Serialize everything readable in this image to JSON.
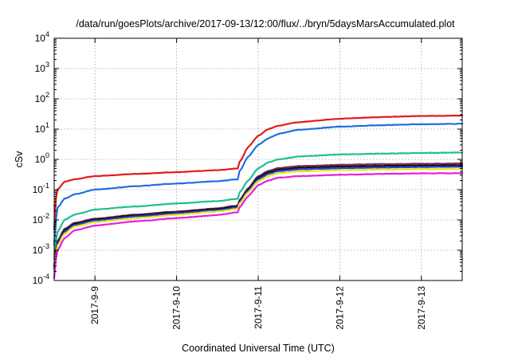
{
  "chart_data": {
    "type": "line",
    "title": "/data/run/goesPlots/archive/2017-09-13/12:00/flux/../bryn/5daysMarsAccumulated.plot",
    "xlabel": "Coordinated Universal Time (UTC)",
    "ylabel": "cSv",
    "y_scale": "log",
    "ylim": [
      0.0001,
      10000
    ],
    "y_ticks": [
      {
        "base": "10",
        "exp": "-4",
        "value": 0.0001
      },
      {
        "base": "10",
        "exp": "-3",
        "value": 0.001
      },
      {
        "base": "10",
        "exp": "-2",
        "value": 0.01
      },
      {
        "base": "10",
        "exp": "-1",
        "value": 0.1
      },
      {
        "base": "10",
        "exp": "0",
        "value": 1
      },
      {
        "base": "10",
        "exp": "1",
        "value": 10
      },
      {
        "base": "10",
        "exp": "2",
        "value": 100
      },
      {
        "base": "10",
        "exp": "3",
        "value": 1000
      },
      {
        "base": "10",
        "exp": "4",
        "value": 10000
      }
    ],
    "xlim": [
      "2017-09-08 12:00",
      "2017-09-13 12:00"
    ],
    "x_ticks": [
      "2017-9-9",
      "2017-9-10",
      "2017-9-11",
      "2017-9-12",
      "2017-9-13"
    ],
    "x_tick_values": [
      "2017-09-09 00:00",
      "2017-09-10 00:00",
      "2017-09-11 00:00",
      "2017-09-12 00:00",
      "2017-09-13 00:00"
    ],
    "grid": true,
    "legend": "none",
    "series": [
      {
        "color": "#e31a1c",
        "x": [
          "2017-09-08 12:00",
          "2017-09-08 12:30",
          "2017-09-08 13:00",
          "2017-09-08 15:00",
          "2017-09-08 18:00",
          "2017-09-09 00:00",
          "2017-09-09 12:00",
          "2017-09-10 00:00",
          "2017-09-10 12:00",
          "2017-09-10 18:00",
          "2017-09-10 18:30",
          "2017-09-10 21:00",
          "2017-09-11 00:00",
          "2017-09-11 03:00",
          "2017-09-11 06:00",
          "2017-09-11 12:00",
          "2017-09-12 00:00",
          "2017-09-12 12:00",
          "2017-09-13 00:00",
          "2017-09-13 12:00"
        ],
        "y": [
          0.005,
          0.05,
          0.1,
          0.18,
          0.22,
          0.28,
          0.33,
          0.38,
          0.44,
          0.5,
          0.8,
          2.5,
          6,
          10,
          13,
          17,
          22,
          25,
          27,
          28
        ]
      },
      {
        "color": "#1f6fe0",
        "x": [
          "2017-09-08 12:00",
          "2017-09-08 12:30",
          "2017-09-08 13:00",
          "2017-09-08 15:00",
          "2017-09-08 18:00",
          "2017-09-09 00:00",
          "2017-09-09 12:00",
          "2017-09-10 00:00",
          "2017-09-10 12:00",
          "2017-09-10 18:00",
          "2017-09-10 18:30",
          "2017-09-10 21:00",
          "2017-09-11 00:00",
          "2017-09-11 03:00",
          "2017-09-11 06:00",
          "2017-09-11 12:00",
          "2017-09-12 00:00",
          "2017-09-12 12:00",
          "2017-09-13 00:00",
          "2017-09-13 12:00"
        ],
        "y": [
          0.0015,
          0.01,
          0.025,
          0.05,
          0.07,
          0.1,
          0.13,
          0.16,
          0.19,
          0.22,
          0.4,
          1.2,
          3,
          5,
          7,
          9.5,
          12,
          13.5,
          14.5,
          15
        ]
      },
      {
        "color": "#1fbf8f",
        "x": [
          "2017-09-08 12:00",
          "2017-09-08 12:30",
          "2017-09-08 13:00",
          "2017-09-08 15:00",
          "2017-09-08 18:00",
          "2017-09-09 00:00",
          "2017-09-09 12:00",
          "2017-09-10 00:00",
          "2017-09-10 12:00",
          "2017-09-10 18:00",
          "2017-09-10 18:30",
          "2017-09-10 21:00",
          "2017-09-11 00:00",
          "2017-09-11 03:00",
          "2017-09-11 06:00",
          "2017-09-11 12:00",
          "2017-09-12 00:00",
          "2017-09-12 12:00",
          "2017-09-13 00:00",
          "2017-09-13 12:00"
        ],
        "y": [
          0.0005,
          0.002,
          0.004,
          0.01,
          0.015,
          0.022,
          0.028,
          0.035,
          0.042,
          0.05,
          0.08,
          0.2,
          0.5,
          0.8,
          1.0,
          1.25,
          1.45,
          1.55,
          1.62,
          1.68
        ]
      },
      {
        "color": "#7b2d5a",
        "x": [
          "2017-09-08 12:00",
          "2017-09-08 12:30",
          "2017-09-08 13:00",
          "2017-09-08 15:00",
          "2017-09-08 18:00",
          "2017-09-09 00:00",
          "2017-09-09 12:00",
          "2017-09-10 00:00",
          "2017-09-10 12:00",
          "2017-09-10 18:00",
          "2017-09-10 18:30",
          "2017-09-10 21:00",
          "2017-09-11 00:00",
          "2017-09-11 03:00",
          "2017-09-11 06:00",
          "2017-09-11 12:00",
          "2017-09-12 00:00",
          "2017-09-12 12:00",
          "2017-09-13 00:00",
          "2017-09-13 12:00"
        ],
        "y": [
          0.0003,
          0.001,
          0.002,
          0.005,
          0.008,
          0.011,
          0.015,
          0.019,
          0.024,
          0.03,
          0.045,
          0.11,
          0.28,
          0.42,
          0.52,
          0.6,
          0.66,
          0.7,
          0.72,
          0.73
        ]
      },
      {
        "color": "#111111",
        "x": [
          "2017-09-08 12:00",
          "2017-09-08 12:30",
          "2017-09-08 13:00",
          "2017-09-08 15:00",
          "2017-09-08 18:00",
          "2017-09-09 00:00",
          "2017-09-09 12:00",
          "2017-09-10 00:00",
          "2017-09-10 12:00",
          "2017-09-10 18:00",
          "2017-09-10 18:30",
          "2017-09-10 21:00",
          "2017-09-11 00:00",
          "2017-09-11 03:00",
          "2017-09-11 06:00",
          "2017-09-11 12:00",
          "2017-09-12 00:00",
          "2017-09-12 12:00",
          "2017-09-13 00:00",
          "2017-09-13 12:00"
        ],
        "y": [
          0.00028,
          0.0009,
          0.0018,
          0.0045,
          0.0075,
          0.0105,
          0.0142,
          0.018,
          0.023,
          0.028,
          0.042,
          0.1,
          0.25,
          0.37,
          0.46,
          0.53,
          0.58,
          0.61,
          0.63,
          0.64
        ]
      },
      {
        "color": "#2b3fd6",
        "x": [
          "2017-09-08 12:00",
          "2017-09-08 12:30",
          "2017-09-08 13:00",
          "2017-09-08 15:00",
          "2017-09-08 18:00",
          "2017-09-09 00:00",
          "2017-09-09 12:00",
          "2017-09-10 00:00",
          "2017-09-10 12:00",
          "2017-09-10 18:00",
          "2017-09-10 18:30",
          "2017-09-10 21:00",
          "2017-09-11 00:00",
          "2017-09-11 03:00",
          "2017-09-11 06:00",
          "2017-09-11 12:00",
          "2017-09-12 00:00",
          "2017-09-12 12:00",
          "2017-09-13 00:00",
          "2017-09-13 12:00"
        ],
        "y": [
          0.00025,
          0.0008,
          0.0016,
          0.004,
          0.0068,
          0.0096,
          0.013,
          0.0165,
          0.021,
          0.026,
          0.038,
          0.09,
          0.22,
          0.33,
          0.41,
          0.47,
          0.51,
          0.54,
          0.56,
          0.57
        ]
      },
      {
        "color": "#e8e816",
        "x": [
          "2017-09-08 12:00",
          "2017-09-08 12:30",
          "2017-09-08 13:00",
          "2017-09-08 15:00",
          "2017-09-08 18:00",
          "2017-09-09 00:00",
          "2017-09-09 12:00",
          "2017-09-10 00:00",
          "2017-09-10 12:00",
          "2017-09-10 18:00",
          "2017-09-10 18:30",
          "2017-09-10 21:00",
          "2017-09-11 00:00",
          "2017-09-11 03:00",
          "2017-09-11 06:00",
          "2017-09-11 12:00",
          "2017-09-12 00:00",
          "2017-09-12 12:00",
          "2017-09-13 00:00",
          "2017-09-13 12:00"
        ],
        "y": [
          0.0002,
          0.0007,
          0.0014,
          0.0035,
          0.006,
          0.0085,
          0.0115,
          0.0148,
          0.019,
          0.023,
          0.034,
          0.08,
          0.19,
          0.28,
          0.35,
          0.4,
          0.44,
          0.46,
          0.475,
          0.48
        ]
      },
      {
        "color": "#e81ee0",
        "x": [
          "2017-09-08 12:00",
          "2017-09-08 12:30",
          "2017-09-08 13:00",
          "2017-09-08 15:00",
          "2017-09-08 18:00",
          "2017-09-09 00:00",
          "2017-09-09 12:00",
          "2017-09-10 00:00",
          "2017-09-10 12:00",
          "2017-09-10 18:00",
          "2017-09-10 18:30",
          "2017-09-10 21:00",
          "2017-09-11 00:00",
          "2017-09-11 03:00",
          "2017-09-11 06:00",
          "2017-09-11 12:00",
          "2017-09-12 00:00",
          "2017-09-12 12:00",
          "2017-09-13 00:00",
          "2017-09-13 12:00"
        ],
        "y": [
          0.00012,
          0.0005,
          0.001,
          0.0025,
          0.0045,
          0.0065,
          0.009,
          0.0115,
          0.0145,
          0.018,
          0.026,
          0.06,
          0.14,
          0.2,
          0.25,
          0.28,
          0.31,
          0.33,
          0.345,
          0.35
        ]
      }
    ]
  }
}
